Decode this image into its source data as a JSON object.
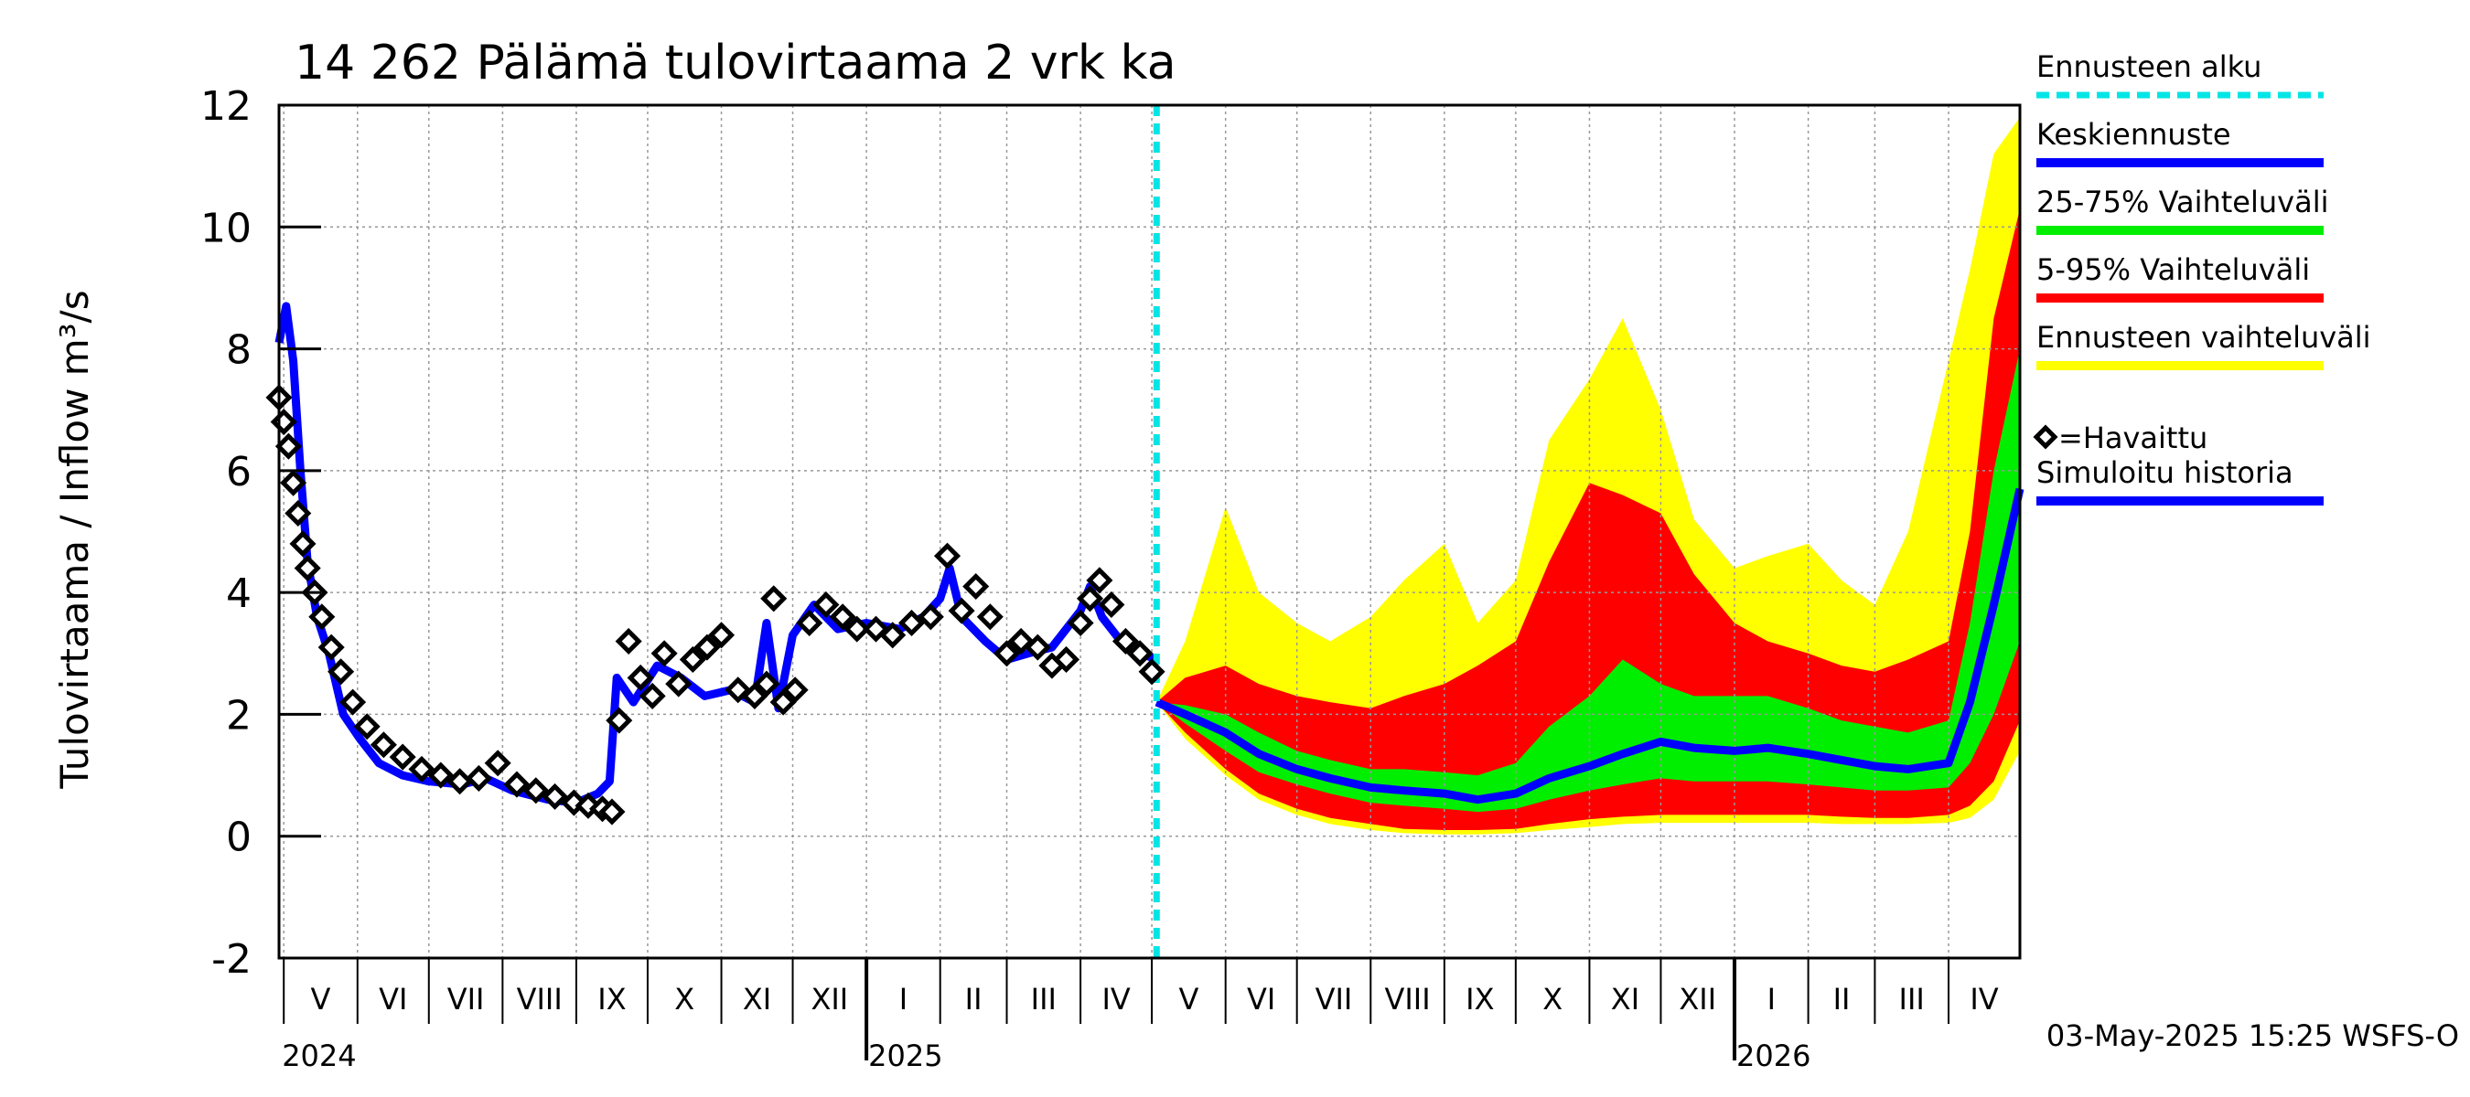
{
  "chart_data": {
    "type": "line",
    "title": "14 262 Pälämä tulovirtaama 2 vrk ka",
    "ylabel": "Tulovirtaama / Inflow    m³/s",
    "ylim": [
      -2,
      12
    ],
    "yticks": [
      -2,
      0,
      2,
      4,
      6,
      8,
      10,
      12
    ],
    "xlim": [
      "2024-04-29",
      "2026-05-01"
    ],
    "grid": true,
    "forecast_start": "2025-05-03",
    "months": [
      {
        "label": "V",
        "date": "2024-05-01"
      },
      {
        "label": "VI",
        "date": "2024-06-01"
      },
      {
        "label": "VII",
        "date": "2024-07-01"
      },
      {
        "label": "VIII",
        "date": "2024-08-01"
      },
      {
        "label": "IX",
        "date": "2024-09-01"
      },
      {
        "label": "X",
        "date": "2024-10-01"
      },
      {
        "label": "XI",
        "date": "2024-11-01"
      },
      {
        "label": "XII",
        "date": "2024-12-01"
      },
      {
        "label": "I",
        "date": "2025-01-01"
      },
      {
        "label": "II",
        "date": "2025-02-01"
      },
      {
        "label": "III",
        "date": "2025-03-01"
      },
      {
        "label": "IV",
        "date": "2025-04-01"
      },
      {
        "label": "V",
        "date": "2025-05-01"
      },
      {
        "label": "VI",
        "date": "2025-06-01"
      },
      {
        "label": "VII",
        "date": "2025-07-01"
      },
      {
        "label": "VIII",
        "date": "2025-08-01"
      },
      {
        "label": "IX",
        "date": "2025-09-01"
      },
      {
        "label": "X",
        "date": "2025-10-01"
      },
      {
        "label": "XI",
        "date": "2025-11-01"
      },
      {
        "label": "XII",
        "date": "2025-12-01"
      },
      {
        "label": "I",
        "date": "2026-01-01"
      },
      {
        "label": "II",
        "date": "2026-02-01"
      },
      {
        "label": "III",
        "date": "2026-03-01"
      },
      {
        "label": "IV",
        "date": "2026-04-01"
      }
    ],
    "years": [
      {
        "label": "2024",
        "date": "2024-05-01"
      },
      {
        "label": "2025",
        "date": "2025-01-01"
      },
      {
        "label": "2026",
        "date": "2026-01-01"
      }
    ],
    "legend": [
      {
        "label": "Ennusteen alku",
        "color": "#00e5e5",
        "style": "dashed"
      },
      {
        "label": "Keskiennuste",
        "color": "#0000ff",
        "style": "solid"
      },
      {
        "label": "25-75% Vaihteluväli",
        "color": "#00ee00",
        "style": "solid"
      },
      {
        "label": "5-95% Vaihteluväli",
        "color": "#ff0000",
        "style": "solid"
      },
      {
        "label": "Ennusteen vaihteluväli",
        "color": "#ffff00",
        "style": "solid"
      },
      {
        "label": "=Havaittu",
        "color": "#000000",
        "style": "marker"
      },
      {
        "label": "Simuloitu historia",
        "color": "#0000ff",
        "style": "solid"
      }
    ],
    "footer": "03-May-2025 15:25 WSFS-O",
    "simulated_history": {
      "x": [
        "2024-04-29",
        "2024-05-02",
        "2024-05-05",
        "2024-05-08",
        "2024-05-11",
        "2024-05-15",
        "2024-05-20",
        "2024-05-26",
        "2024-06-02",
        "2024-06-10",
        "2024-06-20",
        "2024-07-01",
        "2024-07-15",
        "2024-07-25",
        "2024-08-05",
        "2024-08-20",
        "2024-09-01",
        "2024-09-10",
        "2024-09-15",
        "2024-09-18",
        "2024-09-25",
        "2024-10-05",
        "2024-10-15",
        "2024-10-25",
        "2024-11-05",
        "2024-11-15",
        "2024-11-20",
        "2024-11-25",
        "2024-12-01",
        "2024-12-10",
        "2024-12-20",
        "2025-01-01",
        "2025-01-15",
        "2025-01-25",
        "2025-02-01",
        "2025-02-05",
        "2025-02-10",
        "2025-02-20",
        "2025-03-01",
        "2025-03-10",
        "2025-03-20",
        "2025-04-01",
        "2025-04-05",
        "2025-04-10",
        "2025-04-20",
        "2025-05-03"
      ],
      "y": [
        8.1,
        8.7,
        7.8,
        6.0,
        4.5,
        3.6,
        3.0,
        2.0,
        1.6,
        1.2,
        1.0,
        0.9,
        0.85,
        0.95,
        0.75,
        0.6,
        0.55,
        0.7,
        0.9,
        2.6,
        2.2,
        2.8,
        2.6,
        2.3,
        2.4,
        2.2,
        3.5,
        2.1,
        3.3,
        3.8,
        3.4,
        3.5,
        3.4,
        3.6,
        3.9,
        4.4,
        3.6,
        3.2,
        2.9,
        3.0,
        3.1,
        3.7,
        4.1,
        3.6,
        3.1,
        2.9
      ]
    },
    "observed": {
      "x": [
        "2024-04-29",
        "2024-05-01",
        "2024-05-03",
        "2024-05-05",
        "2024-05-07",
        "2024-05-09",
        "2024-05-11",
        "2024-05-14",
        "2024-05-17",
        "2024-05-21",
        "2024-05-25",
        "2024-05-30",
        "2024-06-05",
        "2024-06-12",
        "2024-06-20",
        "2024-06-28",
        "2024-07-06",
        "2024-07-14",
        "2024-07-22",
        "2024-07-30",
        "2024-08-07",
        "2024-08-15",
        "2024-08-23",
        "2024-08-31",
        "2024-09-06",
        "2024-09-12",
        "2024-09-16",
        "2024-09-19",
        "2024-09-23",
        "2024-09-28",
        "2024-10-03",
        "2024-10-08",
        "2024-10-14",
        "2024-10-20",
        "2024-10-26",
        "2024-11-01",
        "2024-11-08",
        "2024-11-15",
        "2024-11-20",
        "2024-11-23",
        "2024-11-27",
        "2024-12-02",
        "2024-12-08",
        "2024-12-15",
        "2024-12-22",
        "2024-12-28",
        "2025-01-05",
        "2025-01-12",
        "2025-01-20",
        "2025-01-28",
        "2025-02-04",
        "2025-02-10",
        "2025-02-16",
        "2025-02-22",
        "2025-03-01",
        "2025-03-07",
        "2025-03-14",
        "2025-03-20",
        "2025-03-26",
        "2025-04-01",
        "2025-04-05",
        "2025-04-09",
        "2025-04-14",
        "2025-04-20",
        "2025-04-26",
        "2025-05-01"
      ],
      "y": [
        7.2,
        6.8,
        6.4,
        5.8,
        5.3,
        4.8,
        4.4,
        4.0,
        3.6,
        3.1,
        2.7,
        2.2,
        1.8,
        1.5,
        1.3,
        1.1,
        1.0,
        0.9,
        0.95,
        1.2,
        0.85,
        0.75,
        0.65,
        0.55,
        0.5,
        0.45,
        0.4,
        1.9,
        3.2,
        2.6,
        2.3,
        3.0,
        2.5,
        2.9,
        3.1,
        3.3,
        2.4,
        2.3,
        2.5,
        3.9,
        2.2,
        2.4,
        3.5,
        3.8,
        3.6,
        3.4,
        3.4,
        3.3,
        3.5,
        3.6,
        4.6,
        3.7,
        4.1,
        3.6,
        3.0,
        3.2,
        3.1,
        2.8,
        2.9,
        3.5,
        3.9,
        4.2,
        3.8,
        3.2,
        3.0,
        2.7
      ]
    },
    "forecast": {
      "x": [
        "2025-05-03",
        "2025-05-15",
        "2025-06-01",
        "2025-06-15",
        "2025-07-01",
        "2025-07-15",
        "2025-08-01",
        "2025-08-15",
        "2025-09-01",
        "2025-09-15",
        "2025-10-01",
        "2025-10-15",
        "2025-11-01",
        "2025-11-15",
        "2025-12-01",
        "2025-12-15",
        "2026-01-01",
        "2026-01-15",
        "2026-02-01",
        "2026-02-15",
        "2026-03-01",
        "2026-03-15",
        "2026-04-01",
        "2026-04-10",
        "2026-04-20",
        "2026-05-01"
      ],
      "median": [
        2.2,
        2.0,
        1.7,
        1.35,
        1.1,
        0.95,
        0.8,
        0.75,
        0.7,
        0.6,
        0.7,
        0.95,
        1.15,
        1.35,
        1.55,
        1.45,
        1.4,
        1.45,
        1.35,
        1.25,
        1.15,
        1.1,
        1.2,
        2.2,
        3.8,
        5.7
      ],
      "p25": [
        2.2,
        1.85,
        1.4,
        1.05,
        0.85,
        0.7,
        0.55,
        0.5,
        0.45,
        0.4,
        0.45,
        0.6,
        0.75,
        0.85,
        0.95,
        0.9,
        0.9,
        0.9,
        0.85,
        0.8,
        0.75,
        0.75,
        0.8,
        1.2,
        2.0,
        3.2
      ],
      "p75": [
        2.2,
        2.15,
        2.0,
        1.7,
        1.4,
        1.25,
        1.1,
        1.1,
        1.05,
        1.0,
        1.2,
        1.8,
        2.3,
        2.9,
        2.5,
        2.3,
        2.3,
        2.3,
        2.1,
        1.9,
        1.8,
        1.7,
        1.9,
        3.5,
        6.0,
        8.0
      ],
      "p05": [
        2.2,
        1.7,
        1.1,
        0.7,
        0.45,
        0.3,
        0.2,
        0.12,
        0.1,
        0.1,
        0.12,
        0.2,
        0.28,
        0.32,
        0.35,
        0.35,
        0.35,
        0.35,
        0.35,
        0.32,
        0.3,
        0.3,
        0.35,
        0.5,
        0.9,
        1.9
      ],
      "p95": [
        2.2,
        2.6,
        2.8,
        2.5,
        2.3,
        2.2,
        2.1,
        2.3,
        2.5,
        2.8,
        3.2,
        4.5,
        5.8,
        5.6,
        5.3,
        4.3,
        3.5,
        3.2,
        3.0,
        2.8,
        2.7,
        2.9,
        3.2,
        5.0,
        8.5,
        10.3
      ],
      "min": [
        2.2,
        1.6,
        1.0,
        0.6,
        0.35,
        0.2,
        0.1,
        0.05,
        0.03,
        0.03,
        0.05,
        0.1,
        0.15,
        0.2,
        0.22,
        0.22,
        0.22,
        0.22,
        0.22,
        0.2,
        0.2,
        0.2,
        0.22,
        0.3,
        0.6,
        1.4
      ],
      "max": [
        2.2,
        3.2,
        5.4,
        4.0,
        3.5,
        3.2,
        3.6,
        4.2,
        4.8,
        3.5,
        4.2,
        6.5,
        7.5,
        8.5,
        7.0,
        5.2,
        4.4,
        4.6,
        4.8,
        4.2,
        3.8,
        5.0,
        7.8,
        9.3,
        11.2,
        11.8
      ]
    }
  }
}
